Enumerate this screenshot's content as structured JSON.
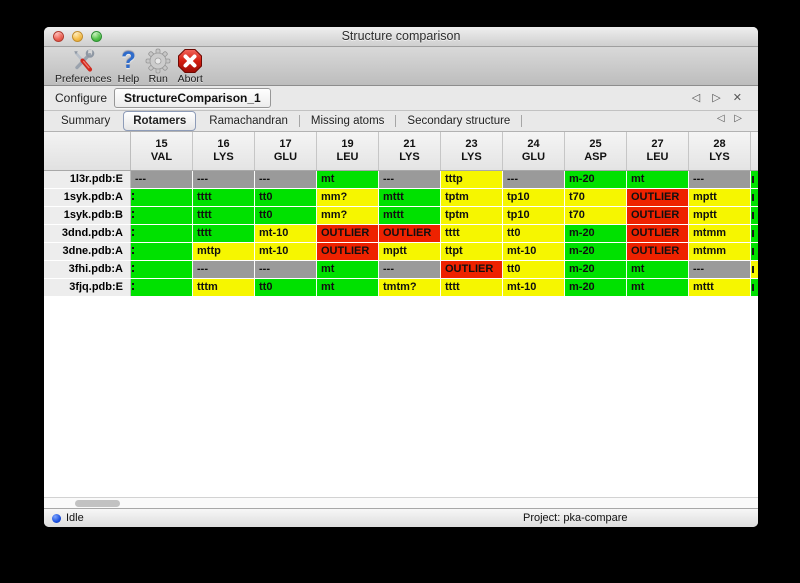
{
  "window": {
    "title": "Structure comparison"
  },
  "toolbar": {
    "items": [
      {
        "label": "Preferences",
        "icon": "tools-icon"
      },
      {
        "label": "Help",
        "icon": "question-icon",
        "glyph": "?"
      },
      {
        "label": "Run",
        "icon": "gear-icon"
      },
      {
        "label": "Abort",
        "icon": "stop-icon"
      }
    ]
  },
  "configure": {
    "label": "Configure",
    "task_name": "StructureComparison_1",
    "nav": {
      "prev": "◁",
      "next": "▷",
      "close": "✕"
    }
  },
  "tabbar": {
    "tabs": [
      {
        "label": "Summary",
        "selected": false
      },
      {
        "label": "Rotamers",
        "selected": true
      },
      {
        "label": "Ramachandran",
        "selected": false
      },
      {
        "label": "Missing atoms",
        "selected": false
      },
      {
        "label": "Secondary structure",
        "selected": false
      }
    ],
    "nav": {
      "prev": "◁",
      "next": "▷"
    }
  },
  "colors": {
    "green": "#00e100",
    "yellow": "#f6f600",
    "red": "#ee2200",
    "gray": "#9a9a9a"
  },
  "table": {
    "columns": [
      {
        "num": "15",
        "res": "VAL"
      },
      {
        "num": "16",
        "res": "LYS"
      },
      {
        "num": "17",
        "res": "GLU"
      },
      {
        "num": "19",
        "res": "LEU"
      },
      {
        "num": "21",
        "res": "LYS"
      },
      {
        "num": "23",
        "res": "LYS"
      },
      {
        "num": "24",
        "res": "GLU"
      },
      {
        "num": "25",
        "res": "ASP"
      },
      {
        "num": "27",
        "res": "LEU"
      },
      {
        "num": "28",
        "res": "LYS"
      }
    ],
    "rows": [
      {
        "label": "1l3r.pdb:E",
        "cells": [
          [
            "---",
            "gray"
          ],
          [
            "---",
            "gray"
          ],
          [
            "---",
            "gray"
          ],
          [
            "mt",
            "green"
          ],
          [
            "---",
            "gray"
          ],
          [
            "tttp",
            "yellow"
          ],
          [
            "---",
            "gray"
          ],
          [
            "m-20",
            "green"
          ],
          [
            "mt",
            "green"
          ],
          [
            "---",
            "gray"
          ]
        ],
        "sliver": "green"
      },
      {
        "label": "1syk.pdb:A",
        "cells": [
          [
            "",
            "green",
            "mark"
          ],
          [
            "tttt",
            "green"
          ],
          [
            "tt0",
            "green"
          ],
          [
            "mm?",
            "yellow"
          ],
          [
            "mttt",
            "green"
          ],
          [
            "tptm",
            "yellow"
          ],
          [
            "tp10",
            "yellow"
          ],
          [
            "t70",
            "yellow"
          ],
          [
            "OUTLIER",
            "red"
          ],
          [
            "mptt",
            "yellow"
          ]
        ],
        "sliver": "green"
      },
      {
        "label": "1syk.pdb:B",
        "cells": [
          [
            "",
            "green",
            "mark"
          ],
          [
            "tttt",
            "green"
          ],
          [
            "tt0",
            "green"
          ],
          [
            "mm?",
            "yellow"
          ],
          [
            "mttt",
            "green"
          ],
          [
            "tptm",
            "yellow"
          ],
          [
            "tp10",
            "yellow"
          ],
          [
            "t70",
            "yellow"
          ],
          [
            "OUTLIER",
            "red"
          ],
          [
            "mptt",
            "yellow"
          ]
        ],
        "sliver": "green"
      },
      {
        "label": "3dnd.pdb:A",
        "cells": [
          [
            "",
            "green",
            "mark"
          ],
          [
            "tttt",
            "green"
          ],
          [
            "mt-10",
            "yellow"
          ],
          [
            "OUTLIER",
            "red"
          ],
          [
            "OUTLIER",
            "red"
          ],
          [
            "tttt",
            "yellow"
          ],
          [
            "tt0",
            "yellow"
          ],
          [
            "m-20",
            "green"
          ],
          [
            "OUTLIER",
            "red"
          ],
          [
            "mtmm",
            "yellow"
          ]
        ],
        "sliver": "green"
      },
      {
        "label": "3dne.pdb:A",
        "cells": [
          [
            "",
            "green",
            "mark"
          ],
          [
            "mttp",
            "yellow"
          ],
          [
            "mt-10",
            "yellow"
          ],
          [
            "OUTLIER",
            "red"
          ],
          [
            "mptt",
            "yellow"
          ],
          [
            "ttpt",
            "yellow"
          ],
          [
            "mt-10",
            "yellow"
          ],
          [
            "m-20",
            "green"
          ],
          [
            "OUTLIER",
            "red"
          ],
          [
            "mtmm",
            "yellow"
          ]
        ],
        "sliver": "green"
      },
      {
        "label": "3fhi.pdb:A",
        "cells": [
          [
            "",
            "green",
            "mark"
          ],
          [
            "---",
            "gray"
          ],
          [
            "---",
            "gray"
          ],
          [
            "mt",
            "green"
          ],
          [
            "---",
            "gray"
          ],
          [
            "OUTLIER",
            "red"
          ],
          [
            "tt0",
            "yellow"
          ],
          [
            "m-20",
            "green"
          ],
          [
            "mt",
            "green"
          ],
          [
            "---",
            "gray"
          ]
        ],
        "sliver": "yellow"
      },
      {
        "label": "3fjq.pdb:E",
        "cells": [
          [
            "",
            "green",
            "mark"
          ],
          [
            "tttm",
            "yellow"
          ],
          [
            "tt0",
            "green"
          ],
          [
            "mt",
            "green"
          ],
          [
            "tmtm?",
            "yellow"
          ],
          [
            "tttt",
            "yellow"
          ],
          [
            "mt-10",
            "yellow"
          ],
          [
            "m-20",
            "green"
          ],
          [
            "mt",
            "green"
          ],
          [
            "mttt",
            "yellow"
          ]
        ],
        "sliver": "green"
      }
    ]
  },
  "statusbar": {
    "status": "Idle",
    "project": "Project: pka-compare"
  }
}
